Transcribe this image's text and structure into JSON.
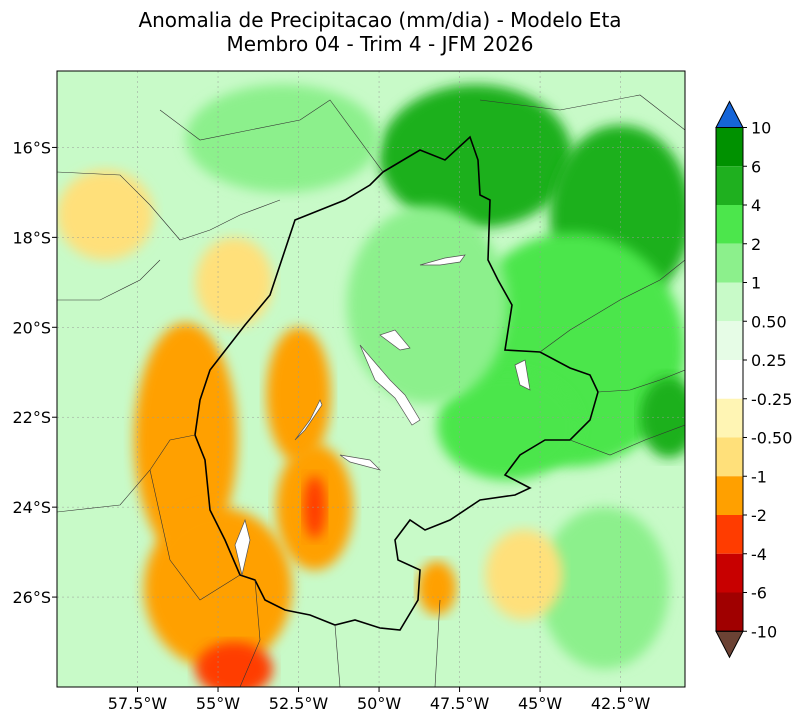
{
  "title_line1": "Anomalia de Precipitacao (mm/dia) - Modelo Eta",
  "title_line2": "Membro 04 - Trim 4 - JFM 2026",
  "chart_data": {
    "type": "heatmap",
    "variable": "precipitation anomaly",
    "units": "mm/dia",
    "lon_range": [
      -60,
      -40.5
    ],
    "lat_range": [
      -28,
      -14.3
    ],
    "x_ticks": [
      {
        "value": -57.5,
        "label": "57.5°W"
      },
      {
        "value": -55,
        "label": "55°W"
      },
      {
        "value": -52.5,
        "label": "52.5°W"
      },
      {
        "value": -50,
        "label": "50°W"
      },
      {
        "value": -47.5,
        "label": "47.5°W"
      },
      {
        "value": -45,
        "label": "45°W"
      },
      {
        "value": -42.5,
        "label": "42.5°W"
      }
    ],
    "y_ticks": [
      {
        "value": -16,
        "label": "16°S"
      },
      {
        "value": -18,
        "label": "18°S"
      },
      {
        "value": -20,
        "label": "20°S"
      },
      {
        "value": -22,
        "label": "22°S"
      },
      {
        "value": -24,
        "label": "24°S"
      },
      {
        "value": -26,
        "label": "26°S"
      }
    ],
    "gridlines": true,
    "colorbar": {
      "placement": "right",
      "levels": [
        "10",
        "6",
        "4",
        "2",
        "1",
        "0.50",
        "0.25",
        "-0.25",
        "-0.50",
        "-1",
        "-2",
        "-4",
        "-6",
        "-10"
      ],
      "band_colors": [
        "#009100",
        "#1fb01f",
        "#4ce64c",
        "#8cf08c",
        "#c8fac8",
        "#e6fce6",
        "#ffffff",
        "#fff5b4",
        "#ffe07a",
        "#ffa000",
        "#ff3c00",
        "#c80000",
        "#a00000"
      ],
      "over_color": "#1565d8",
      "under_color": "#6b4234"
    },
    "anomaly_blobs": [
      {
        "lon": -47.0,
        "lat": -16.2,
        "value": 5,
        "rx": 3.0,
        "ry": 1.6
      },
      {
        "lon": -42.5,
        "lat": -17.5,
        "value": 5,
        "rx": 2.2,
        "ry": 2.0
      },
      {
        "lon": -44.0,
        "lat": -20.5,
        "value": 3,
        "rx": 3.5,
        "ry": 2.6
      },
      {
        "lon": -46.0,
        "lat": -22.2,
        "value": 3,
        "rx": 2.2,
        "ry": 1.2
      },
      {
        "lon": -41.0,
        "lat": -22.0,
        "value": 5,
        "rx": 0.9,
        "ry": 0.9
      },
      {
        "lon": -53.0,
        "lat": -15.8,
        "value": 1.5,
        "rx": 3.0,
        "ry": 1.2
      },
      {
        "lon": -48.5,
        "lat": -19.5,
        "value": 1.5,
        "rx": 2.5,
        "ry": 2.2
      },
      {
        "lon": -43.0,
        "lat": -25.8,
        "value": 1.5,
        "rx": 2.0,
        "ry": 1.8
      },
      {
        "lon": -56.0,
        "lat": -22.5,
        "value": -1.5,
        "rx": 1.6,
        "ry": 2.6
      },
      {
        "lon": -52.5,
        "lat": -21.5,
        "value": -1.5,
        "rx": 1.0,
        "ry": 1.5
      },
      {
        "lon": -52.0,
        "lat": -24.0,
        "value": -1.5,
        "rx": 1.2,
        "ry": 1.4
      },
      {
        "lon": -55.0,
        "lat": -25.8,
        "value": -1.5,
        "rx": 2.3,
        "ry": 1.8
      },
      {
        "lon": -54.5,
        "lat": -19.0,
        "value": -0.7,
        "rx": 1.2,
        "ry": 1.0
      },
      {
        "lon": -58.5,
        "lat": -17.5,
        "value": -0.7,
        "rx": 1.5,
        "ry": 1.0
      },
      {
        "lon": -52.0,
        "lat": -24.0,
        "value": -2.5,
        "rx": 0.35,
        "ry": 0.7
      },
      {
        "lon": -54.5,
        "lat": -27.6,
        "value": -2.5,
        "rx": 1.2,
        "ry": 0.6
      },
      {
        "lon": -48.2,
        "lat": -25.8,
        "value": -1.5,
        "rx": 0.6,
        "ry": 0.6
      },
      {
        "lon": -45.5,
        "lat": -25.5,
        "value": -0.6,
        "rx": 1.2,
        "ry": 1.0
      }
    ]
  }
}
